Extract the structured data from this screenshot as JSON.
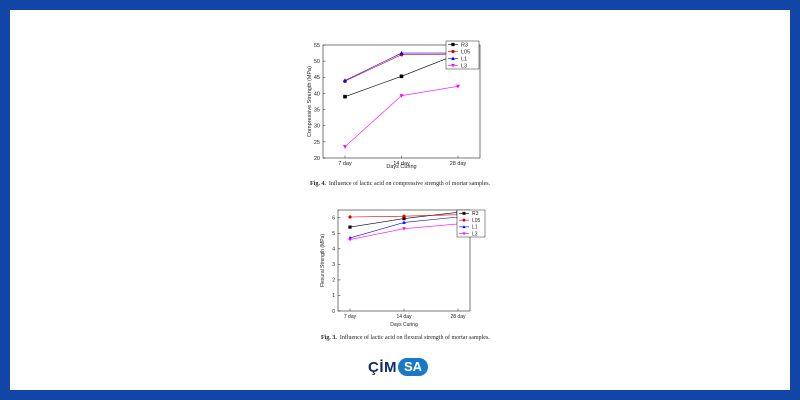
{
  "brand": {
    "name_part1": "ÇİM",
    "name_part2": "SA",
    "bg_color": "#1145a8",
    "accent": "#1a78c8"
  },
  "series_styles": [
    {
      "name": "R3",
      "color": "#000000",
      "marker": "square"
    },
    {
      "name": "L05",
      "color": "#e00000",
      "marker": "circle"
    },
    {
      "name": "L1",
      "color": "#0000ff",
      "marker": "triangle-up"
    },
    {
      "name": "L3",
      "color": "#ff00ff",
      "marker": "triangle-down"
    }
  ],
  "chart_data": [
    {
      "type": "line",
      "title": "",
      "categories": [
        "7 day",
        "14 day",
        "28 day"
      ],
      "xlabel": "Days Curing",
      "ylabel": "Compressive Strength (MPa)",
      "ylim": [
        20,
        55
      ],
      "yticks": [
        20,
        25,
        30,
        35,
        40,
        45,
        50,
        55
      ],
      "legend": "top-right",
      "series": [
        {
          "name": "R3",
          "values": [
            39,
            45.3,
            52.2
          ]
        },
        {
          "name": "L05",
          "values": [
            43.8,
            52,
            52.2
          ]
        },
        {
          "name": "L1",
          "values": [
            44,
            52.5,
            52.5
          ]
        },
        {
          "name": "L3",
          "values": [
            23.5,
            39.3,
            42.2
          ]
        }
      ],
      "caption_label": "Fig. 4.",
      "caption_text": "Influence of lactic acid on compressive strength of mortar samples."
    },
    {
      "type": "line",
      "title": "",
      "categories": [
        "7 day",
        "14 day",
        "28 day"
      ],
      "xlabel": "Days Curing",
      "ylabel": "Flexural Strength (MPa)",
      "ylim": [
        0,
        6.5
      ],
      "yticks": [
        0,
        1,
        2,
        3,
        4,
        5,
        6
      ],
      "legend": "top-right",
      "series": [
        {
          "name": "R3",
          "values": [
            5.4,
            5.95,
            6.35
          ]
        },
        {
          "name": "L05",
          "values": [
            6.05,
            6.1,
            6.2
          ]
        },
        {
          "name": "L1",
          "values": [
            4.7,
            5.7,
            6.05
          ]
        },
        {
          "name": "L3",
          "values": [
            4.6,
            5.3,
            5.6
          ]
        }
      ],
      "caption_label": "Fig. 3.",
      "caption_text": "Influence of lactic acid on flexural strength of mortar samples."
    }
  ]
}
